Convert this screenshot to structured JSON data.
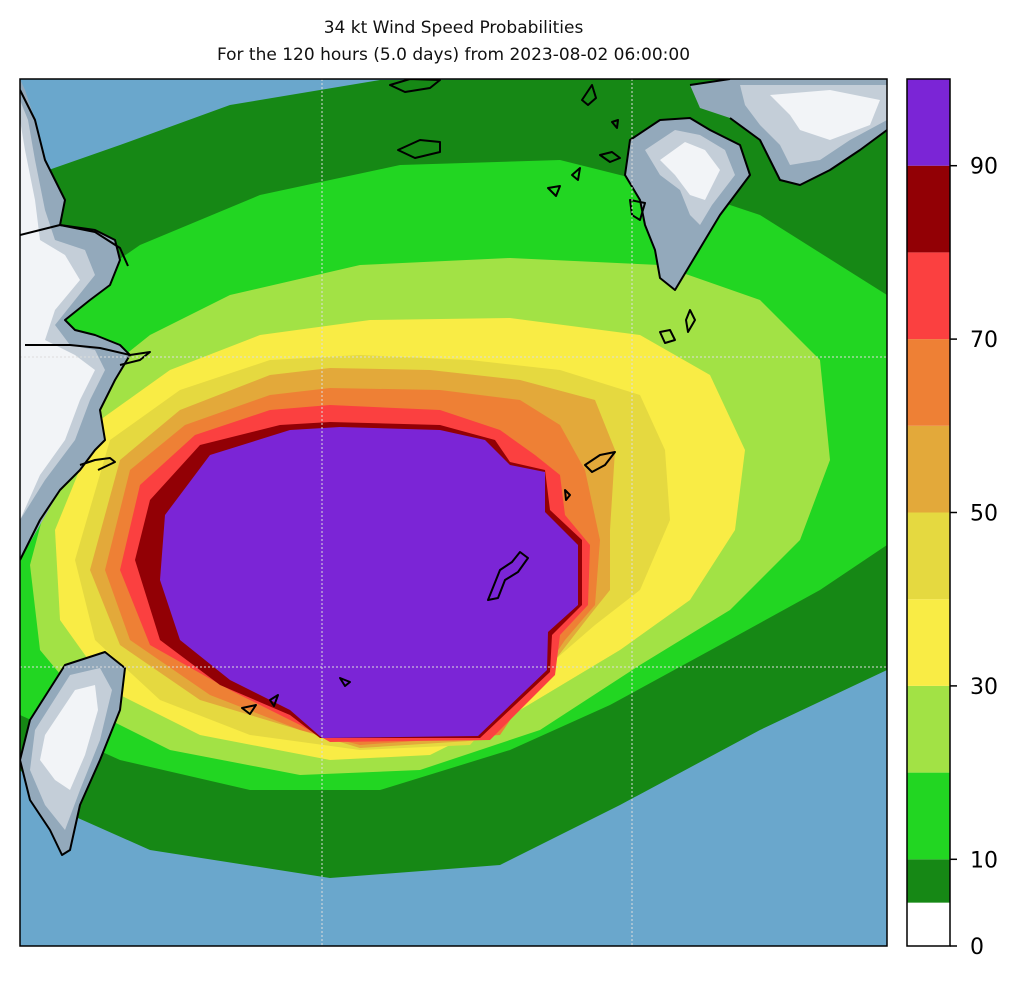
{
  "title_line1": "34 kt Wind Speed Probabilities",
  "title_line2": "For the 120 hours (5.0 days) from 2023-08-02 06:00:00",
  "colors": {
    "ocean": "#6aa7cc",
    "land_base": "#93a9bb",
    "land_mid": "#c4ced8",
    "land_light": "#f2f4f7",
    "coast": "#000000",
    "grid": "#dddddd"
  },
  "colorbar": {
    "levels": [
      0,
      10,
      20,
      30,
      40,
      50,
      60,
      70,
      80,
      90,
      100
    ],
    "bands": [
      {
        "from": 0,
        "to": 5,
        "color": "#ffffff"
      },
      {
        "from": 5,
        "to": 10,
        "color": "#168815"
      },
      {
        "from": 10,
        "to": 20,
        "color": "#22d622"
      },
      {
        "from": 20,
        "to": 30,
        "color": "#a2e245"
      },
      {
        "from": 30,
        "to": 40,
        "color": "#f9ec45"
      },
      {
        "from": 40,
        "to": 50,
        "color": "#e5d940"
      },
      {
        "from": 50,
        "to": 60,
        "color": "#e3a93a"
      },
      {
        "from": 60,
        "to": 70,
        "color": "#ee8035"
      },
      {
        "from": 70,
        "to": 80,
        "color": "#fb4040"
      },
      {
        "from": 80,
        "to": 90,
        "color": "#920005"
      },
      {
        "from": 90,
        "to": 100,
        "color": "#7b25d6"
      }
    ],
    "tick_labels": [
      "0",
      "10",
      "30",
      "50",
      "70",
      "90"
    ]
  }
}
